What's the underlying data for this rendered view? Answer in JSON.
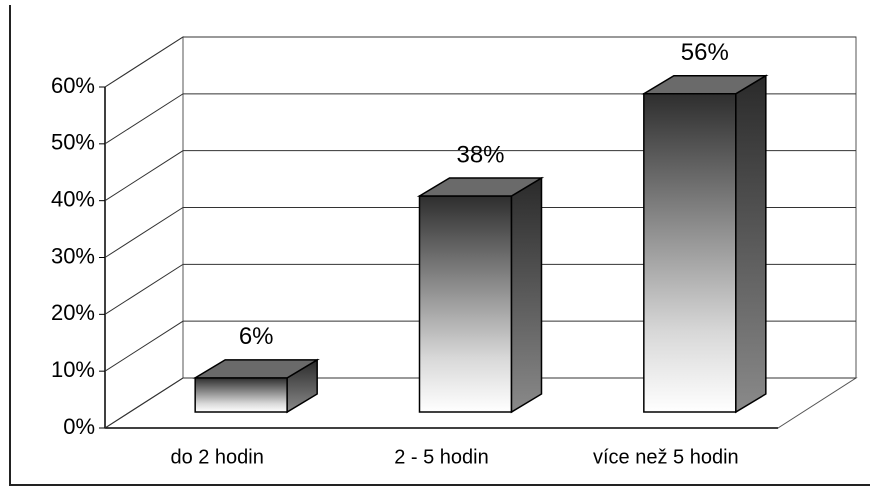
{
  "chart_data": {
    "type": "bar",
    "categories": [
      "do 2 hodin",
      "2 - 5 hodin",
      "více než 5 hodin"
    ],
    "values": [
      6,
      38,
      56
    ],
    "value_labels": [
      "6%",
      "38%",
      "56%"
    ],
    "color": "#3a3a3a",
    "ylim": [
      0,
      60
    ],
    "yticks": [
      {
        "value": 0,
        "label": "0%"
      },
      {
        "value": 10,
        "label": "10%"
      },
      {
        "value": 20,
        "label": "20%"
      },
      {
        "value": 30,
        "label": "30%"
      },
      {
        "value": 40,
        "label": "40%"
      },
      {
        "value": 50,
        "label": "50%"
      },
      {
        "value": 60,
        "label": "60%"
      }
    ],
    "grid": true
  }
}
